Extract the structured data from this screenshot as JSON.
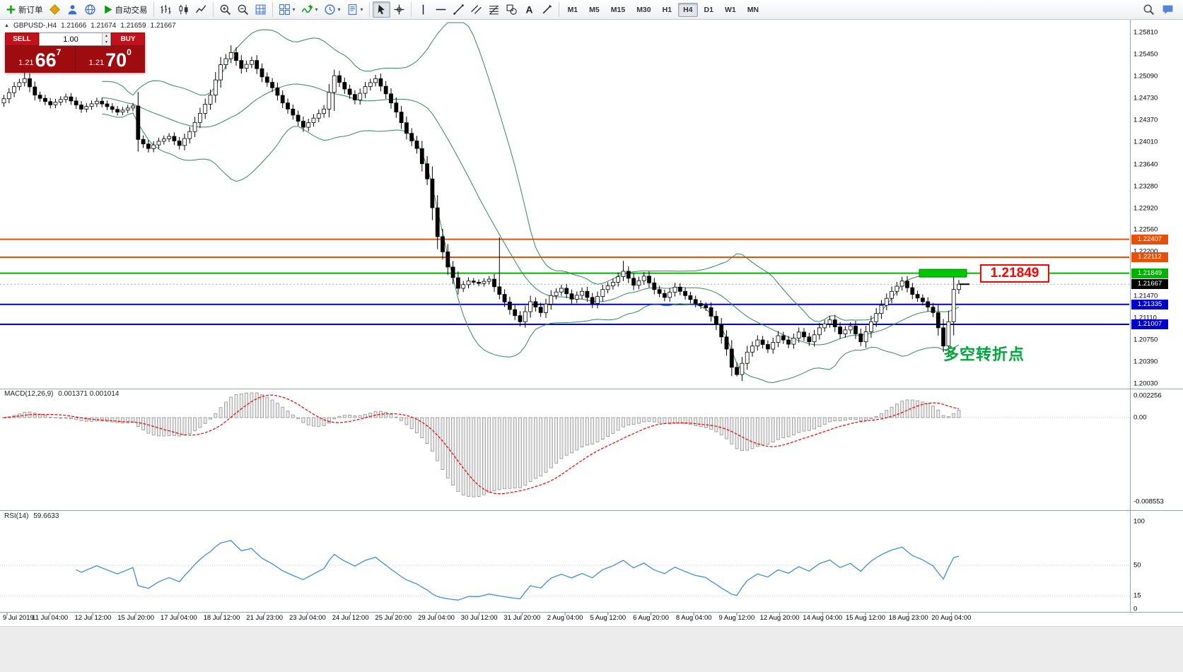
{
  "toolbar": {
    "groups": [
      {
        "items": [
          {
            "name": "new-order-button",
            "icon": "plus",
            "label": "新订单",
            "color": "#0a9a0a"
          },
          {
            "name": "profiles-button",
            "icon": "diamond",
            "color": "#e2a400"
          },
          {
            "name": "market-watch-button",
            "icon": "person",
            "color": "#3a6fd8"
          },
          {
            "name": "data-window-button",
            "icon": "globe",
            "color": "#3a6fd8"
          },
          {
            "name": "autotrading-button",
            "icon": "play",
            "label": "自动交易",
            "color": "#0a9a0a"
          }
        ]
      },
      {
        "items": [
          {
            "name": "bar-chart-button",
            "icon": "bars",
            "color": "#333333"
          },
          {
            "name": "candlestick-button",
            "icon": "candles",
            "color": "#333333"
          },
          {
            "name": "line-chart-button",
            "icon": "linechart",
            "color": "#333333"
          }
        ]
      },
      {
        "items": [
          {
            "name": "zoom-in-button",
            "icon": "zoomin",
            "color": "#444444"
          },
          {
            "name": "zoom-out-button",
            "icon": "zoomout",
            "color": "#444444"
          },
          {
            "name": "grid-button",
            "icon": "grid",
            "color": "#3a6fd8"
          }
        ]
      },
      {
        "items": [
          {
            "name": "tile-windows-button",
            "icon": "tile",
            "color": "#3a6fd8",
            "dropdown": true
          },
          {
            "name": "indicators-button",
            "icon": "indicator",
            "color": "#0a9a0a",
            "dropdown": true
          },
          {
            "name": "periods-button",
            "icon": "clock",
            "color": "#3a6fd8",
            "dropdown": true
          },
          {
            "name": "templates-button",
            "icon": "template",
            "color": "#3a6fd8",
            "dropdown": true
          }
        ]
      },
      {
        "items": [
          {
            "name": "cursor-button",
            "icon": "cursor",
            "color": "#222222",
            "active": true
          },
          {
            "name": "crosshair-button",
            "icon": "crosshair",
            "color": "#222222"
          }
        ]
      },
      {
        "items": [
          {
            "name": "vertical-line-button",
            "icon": "vline",
            "color": "#222222"
          },
          {
            "name": "horizontal-line-button",
            "icon": "hline",
            "color": "#222222"
          },
          {
            "name": "trendline-button",
            "icon": "trendline",
            "color": "#222222"
          },
          {
            "name": "channel-button",
            "icon": "channel",
            "color": "#222222"
          },
          {
            "name": "fibonacci-button",
            "icon": "fibo",
            "color": "#222222"
          },
          {
            "name": "shapes-button",
            "icon": "shapes",
            "color": "#222222"
          },
          {
            "name": "text-button",
            "icon": "textA",
            "color": "#222222"
          },
          {
            "name": "arrow-tool-button",
            "icon": "arrowmark",
            "color": "#222222"
          }
        ]
      },
      {
        "type": "timeframes",
        "items": [
          {
            "name": "timeframe-m1",
            "label": "M1"
          },
          {
            "name": "timeframe-m5",
            "label": "M5"
          },
          {
            "name": "timeframe-m15",
            "label": "M15"
          },
          {
            "name": "timeframe-m30",
            "label": "M30"
          },
          {
            "name": "timeframe-h1",
            "label": "H1"
          },
          {
            "name": "timeframe-h4",
            "label": "H4",
            "active": true
          },
          {
            "name": "timeframe-d1",
            "label": "D1"
          },
          {
            "name": "timeframe-w1",
            "label": "W1"
          },
          {
            "name": "timeframe-mn",
            "label": "MN"
          }
        ]
      }
    ],
    "right": [
      {
        "name": "search-button",
        "icon": "search",
        "color": "#555555"
      },
      {
        "name": "chat-button",
        "icon": "chat",
        "color": "#3a6fd8"
      }
    ]
  },
  "chart": {
    "symbol": "GBPUSD-,H4",
    "open": "1.21666",
    "high": "1.21674",
    "low": "1.21659",
    "close": "1.21667"
  },
  "trade": {
    "sell_label": "SELL",
    "buy_label": "BUY",
    "volume": "1.00",
    "sell_price": {
      "small": "1.21",
      "big": "66",
      "sup": "7"
    },
    "buy_price": {
      "small": "1.21",
      "big": "70",
      "sup": "0"
    }
  },
  "hlines": [
    {
      "price": 1.22407,
      "label": "1.22407",
      "color": "#e8500a"
    },
    {
      "price": 1.22112,
      "label": "1.22112",
      "color": "#e8500a"
    },
    {
      "price": 1.21849,
      "label": "1.21849",
      "color": "#00b300"
    },
    {
      "price": 1.21335,
      "label": "1.21335",
      "color": "#0000cc"
    },
    {
      "price": 1.21007,
      "label": "1.21007",
      "color": "#0000cc"
    }
  ],
  "current_price": {
    "value": 1.21667,
    "label": "1.21667",
    "color": "#000000"
  },
  "objects": {
    "price_label": {
      "text": "1.21849",
      "color": "#ff0000"
    },
    "annotation": {
      "text": "多空转折点",
      "color": "#00a83c"
    },
    "rect": {
      "price": 1.21849,
      "color": "#00c800"
    }
  },
  "price_axis": [
    "1.25810",
    "1.25450",
    "1.25090",
    "1.24730",
    "1.24370",
    "1.24010",
    "1.23640",
    "1.23280",
    "1.22920",
    "1.22560",
    "1.22200",
    "1.21470",
    "1.21110",
    "1.20750",
    "1.20390",
    "1.20030"
  ],
  "time_axis": [
    "9 Jul 2019",
    "11 Jul 04:00",
    "12 Jul 12:00",
    "15 Jul 20:00",
    "17 Jul 04:00",
    "18 Jul 12:00",
    "21 Jul 23:00",
    "23 Jul 04:00",
    "24 Jul 12:00",
    "25 Jul 20:00",
    "29 Jul 04:00",
    "30 Jul 12:00",
    "31 Jul 20:00",
    "2 Aug 04:00",
    "5 Aug 12:00",
    "6 Aug 20:00",
    "8 Aug 04:00",
    "9 Aug 12:00",
    "12 Aug 20:00",
    "14 Aug 04:00",
    "15 Aug 12:00",
    "18 Aug 23:00",
    "20 Aug 04:00"
  ],
  "macd": {
    "title": "MACD(12,26,9)",
    "values": "0.001371 0.001014",
    "axis": [
      {
        "v": 0.002256,
        "t": "0.002256"
      },
      {
        "v": 0,
        "t": "0.00"
      },
      {
        "v": -0.008553,
        "t": "-0.008553"
      }
    ]
  },
  "rsi": {
    "title": "RSI(14)",
    "value": "59.6633",
    "axis": [
      {
        "v": 100,
        "t": "100"
      },
      {
        "v": 50,
        "t": "50"
      },
      {
        "v": 15,
        "t": "15"
      },
      {
        "v": 0,
        "t": "0"
      }
    ]
  },
  "chart_data": {
    "type": "candlestick",
    "symbol": "GBPUSD-",
    "timeframe": "H4",
    "ylim": [
      1.2003,
      1.2581
    ],
    "first_open": 1.2465,
    "wick_base": 0.0004,
    "wick_factor": 0.35,
    "closes": [
      1.2472,
      1.2482,
      1.2492,
      1.24985,
      1.2505,
      1.24915,
      1.2478,
      1.24727,
      1.24673,
      1.2462,
      1.24663,
      1.24707,
      1.2475,
      1.24683,
      1.24617,
      1.2455,
      1.24593,
      1.24637,
      1.2468,
      1.24635,
      1.2459,
      1.24545,
      1.245,
      1.24533,
      1.24567,
      1.246,
      1.2405,
      1.23975,
      1.239,
      1.2396,
      1.2402,
      1.2406,
      1.241,
      1.24025,
      1.2395,
      1.24065,
      1.2418,
      1.2433,
      1.2448,
      1.2463,
      1.2478,
      1.2503,
      1.2528,
      1.2538,
      1.2548,
      1.2535,
      1.2522,
      1.25285,
      1.2535,
      1.25215,
      1.2508,
      1.2499,
      1.249,
      1.24775,
      1.2465,
      1.2455,
      1.2445,
      1.2435,
      1.2425,
      1.24325,
      1.244,
      1.24475,
      1.2455,
      1.24825,
      1.251,
      1.2499,
      1.2488,
      1.2479,
      1.247,
      1.2481,
      1.2492,
      1.24985,
      1.2505,
      1.24925,
      1.248,
      1.2465,
      1.245,
      1.24325,
      1.2415,
      1.24025,
      1.239,
      1.2365,
      1.234,
      1.22925,
      1.2245,
      1.222,
      1.2195,
      1.21775,
      1.216,
      1.2166,
      1.2172,
      1.217,
      1.2168,
      1.21715,
      1.2175,
      1.21625,
      1.215,
      1.21375,
      1.2125,
      1.2115,
      1.2105,
      1.21215,
      1.2138,
      1.2129,
      1.212,
      1.2134,
      1.2148,
      1.2154,
      1.216,
      1.2151,
      1.2142,
      1.21485,
      1.2155,
      1.2145,
      1.2135,
      1.21465,
      1.2158,
      1.2164,
      1.217,
      1.2179,
      1.2188,
      1.21765,
      1.2165,
      1.21725,
      1.218,
      1.2169,
      1.2158,
      1.21515,
      1.2145,
      1.21535,
      1.2162,
      1.2155,
      1.2148,
      1.21415,
      1.2135,
      1.21315,
      1.2128,
      1.2114,
      1.21,
      1.208,
      1.206,
      1.203,
      1.2018,
      1.20365,
      1.2055,
      1.2065,
      1.2075,
      1.20675,
      1.206,
      1.2071,
      1.2082,
      1.2075,
      1.2068,
      1.2078,
      1.2088,
      1.208,
      1.2072,
      1.20835,
      1.2095,
      1.21015,
      1.2108,
      1.20965,
      1.2085,
      1.20915,
      1.2098,
      1.2085,
      1.2072,
      1.20885,
      1.2105,
      1.21185,
      1.2132,
      1.21435,
      1.2155,
      1.21635,
      1.2172,
      1.2161,
      1.215,
      1.2144,
      1.2138,
      1.2129,
      1.212,
      1.2095,
      1.2065,
      1.2105,
      1.2158,
      1.21667
    ],
    "wick_overrides": {
      "4": {
        "h": 1.2525
      },
      "26": {
        "l": 1.2385
      },
      "44": {
        "h": 1.256
      },
      "64": {
        "h": 1.252,
        "l": 1.2452
      },
      "82": {
        "l": 1.233
      },
      "96": {
        "h": 1.2244,
        "l": 1.2142
      },
      "120": {
        "h": 1.2205
      },
      "142": {
        "l": 1.2015
      },
      "166": {
        "l": 1.2065
      },
      "182": {
        "l": 1.2055
      }
    },
    "indicators": {
      "bollinger_period": 20,
      "bollinger_dev": 2,
      "macd": [
        12,
        26,
        9
      ],
      "rsi_period": 14
    }
  },
  "colors": {
    "bollinger": "#2E8B57",
    "macd_bar_fill": "#ededed",
    "macd_bar_stroke": "#909090",
    "macd_signal": "#f00000",
    "rsi_line": "#3f8fd6",
    "candle_up": "#ffffff",
    "candle_down": "#000000",
    "separator": "#9aa0a6",
    "bid_line": "#aaaaaa"
  }
}
